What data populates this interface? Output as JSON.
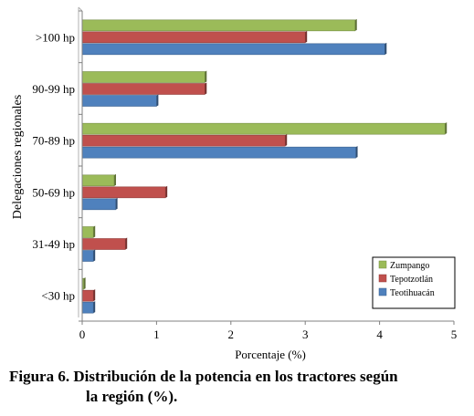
{
  "chart_data": {
    "type": "bar",
    "orientation": "horizontal",
    "categories": [
      "<30 hp",
      "31-49 hp",
      "50-69 hp",
      "70-89 hp",
      "90-99 hp",
      ">100 hp"
    ],
    "series": [
      {
        "name": "Teotihuacán",
        "color": "#4f81bd",
        "values": [
          0.15,
          0.15,
          0.45,
          3.68,
          1.0,
          4.07
        ]
      },
      {
        "name": "Tepotzotlán",
        "color": "#c0504d",
        "values": [
          0.15,
          0.58,
          1.12,
          2.73,
          1.65,
          3.0
        ]
      },
      {
        "name": "Zumpango",
        "color": "#9bbb59",
        "values": [
          0.02,
          0.15,
          0.43,
          4.88,
          1.65,
          3.67
        ]
      }
    ],
    "xlabel": "Porcentaje (%)",
    "ylabel": "Delegaciones  regionales",
    "xlim": [
      0,
      5
    ],
    "xticks": [
      "0",
      "1",
      "2",
      "3",
      "4",
      "5"
    ],
    "grid": false,
    "legend_position": "bottom-right",
    "legend_order": [
      "Zumpango",
      "Tepotzotlán",
      "Teotihuacán"
    ]
  },
  "caption": {
    "line1": "Figura 6. Distribución de la potencia en los tractores según",
    "line2": "la región (%)."
  }
}
